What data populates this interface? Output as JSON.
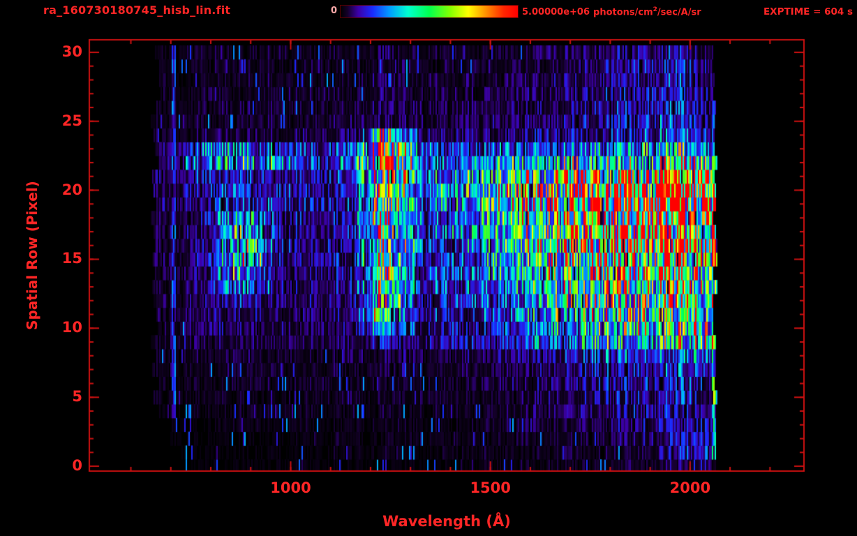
{
  "header": {
    "title": "ra_160730180745_hisb_lin.fit",
    "exptime": "EXPTIME = 604 s",
    "colorbar": {
      "min_label": "0",
      "max_value": "5.00000e+06",
      "units_pre": "photons/cm",
      "units_sup": "2",
      "units_post": "/sec/A/sr"
    }
  },
  "colors": {
    "text_red": "#ff2626",
    "frame_red": "#cc1111",
    "background": "#000000",
    "min_label_pale": "#ffaaaa"
  },
  "chart_data": {
    "type": "heatmap",
    "title": "ra_160730180745_hisb_lin.fit",
    "xlabel": "Wavelength (Å)",
    "ylabel": "Spatial Row (Pixel)",
    "x_axis_range": [
      496,
      2285
    ],
    "y_axis_range": [
      -0.4,
      30.9
    ],
    "x_major_ticks": [
      1000,
      1500,
      2000
    ],
    "x_minor_step": 100,
    "y_major_ticks": [
      0,
      5,
      10,
      15,
      20,
      25,
      30
    ],
    "y_minor_step": 1,
    "colorbar": {
      "min": 0,
      "max": 5000000,
      "units": "photons/cm^2/sec/A/sr"
    },
    "exptime_seconds": 604,
    "grid_on": false,
    "data_wavelength_extent": [
      650,
      2070
    ],
    "wavelength_bin_centers": [
      700,
      790,
      880,
      970,
      1060,
      1150,
      1240,
      1330,
      1420,
      1510,
      1600,
      1690,
      1780,
      1870,
      1960,
      2050
    ],
    "rows_order": "bottom_to_top",
    "intensity_pct_rows_0_to_30": [
      [
        0,
        1,
        1,
        1,
        1,
        1,
        1,
        1,
        1,
        2,
        2,
        2,
        3,
        4,
        5,
        8
      ],
      [
        1,
        1,
        1,
        1,
        1,
        2,
        2,
        2,
        2,
        2,
        2,
        3,
        3,
        5,
        7,
        15
      ],
      [
        1,
        1,
        1,
        1,
        2,
        2,
        2,
        2,
        2,
        2,
        3,
        3,
        4,
        6,
        8,
        12
      ],
      [
        1,
        1,
        2,
        2,
        2,
        2,
        2,
        2,
        2,
        3,
        3,
        4,
        5,
        7,
        9,
        10
      ],
      [
        1,
        2,
        2,
        2,
        2,
        2,
        3,
        2,
        3,
        3,
        4,
        5,
        6,
        8,
        10,
        8
      ],
      [
        2,
        2,
        2,
        2,
        2,
        3,
        3,
        3,
        3,
        3,
        4,
        5,
        7,
        9,
        11,
        9
      ],
      [
        2,
        2,
        3,
        2,
        3,
        3,
        3,
        3,
        3,
        4,
        5,
        6,
        8,
        10,
        12,
        10
      ],
      [
        2,
        3,
        3,
        3,
        3,
        3,
        4,
        3,
        4,
        4,
        5,
        7,
        9,
        11,
        13,
        12
      ],
      [
        2,
        3,
        3,
        3,
        3,
        4,
        5,
        4,
        5,
        6,
        8,
        10,
        12,
        15,
        18,
        20
      ],
      [
        3,
        4,
        5,
        4,
        4,
        5,
        10,
        7,
        9,
        11,
        15,
        20,
        25,
        30,
        34,
        40
      ],
      [
        3,
        5,
        6,
        5,
        5,
        6,
        20,
        8,
        10,
        13,
        18,
        24,
        30,
        36,
        40,
        45
      ],
      [
        3,
        5,
        8,
        5,
        5,
        7,
        35,
        9,
        11,
        15,
        22,
        30,
        36,
        42,
        46,
        44
      ],
      [
        3,
        6,
        10,
        6,
        6,
        7,
        38,
        10,
        12,
        17,
        25,
        34,
        40,
        46,
        50,
        48
      ],
      [
        3,
        7,
        25,
        7,
        6,
        8,
        40,
        11,
        14,
        20,
        30,
        40,
        46,
        52,
        56,
        54
      ],
      [
        3,
        7,
        35,
        7,
        7,
        8,
        42,
        12,
        16,
        24,
        34,
        44,
        50,
        57,
        61,
        58
      ],
      [
        4,
        8,
        40,
        8,
        7,
        9,
        45,
        12,
        17,
        26,
        36,
        46,
        53,
        60,
        64,
        60
      ],
      [
        4,
        8,
        38,
        8,
        8,
        9,
        45,
        13,
        18,
        28,
        38,
        48,
        55,
        62,
        66,
        62
      ],
      [
        4,
        8,
        35,
        8,
        8,
        10,
        48,
        14,
        20,
        30,
        40,
        50,
        58,
        65,
        70,
        65
      ],
      [
        4,
        9,
        30,
        9,
        9,
        10,
        50,
        15,
        22,
        32,
        42,
        52,
        62,
        70,
        75,
        70
      ],
      [
        5,
        10,
        13,
        10,
        9,
        11,
        55,
        17,
        26,
        38,
        48,
        58,
        70,
        82,
        92,
        98
      ],
      [
        5,
        10,
        14,
        10,
        10,
        12,
        55,
        18,
        28,
        40,
        50,
        60,
        72,
        85,
        95,
        100
      ],
      [
        5,
        12,
        15,
        10,
        10,
        12,
        60,
        18,
        25,
        35,
        45,
        55,
        65,
        75,
        85,
        80
      ],
      [
        6,
        22,
        30,
        18,
        15,
        18,
        68,
        20,
        20,
        22,
        25,
        28,
        32,
        38,
        45,
        40
      ],
      [
        5,
        18,
        20,
        12,
        10,
        12,
        62,
        15,
        14,
        15,
        16,
        18,
        20,
        25,
        30,
        28
      ],
      [
        3,
        4,
        4,
        4,
        4,
        5,
        45,
        6,
        6,
        6,
        7,
        8,
        10,
        13,
        15,
        12
      ],
      [
        3,
        3,
        3,
        3,
        3,
        4,
        6,
        4,
        5,
        5,
        6,
        7,
        9,
        12,
        14,
        10
      ],
      [
        2,
        3,
        3,
        3,
        3,
        4,
        5,
        4,
        4,
        5,
        5,
        7,
        8,
        11,
        13,
        9
      ],
      [
        2,
        3,
        2,
        3,
        3,
        3,
        4,
        4,
        4,
        4,
        5,
        6,
        8,
        10,
        12,
        8
      ],
      [
        2,
        2,
        3,
        3,
        2,
        3,
        4,
        3,
        4,
        4,
        5,
        6,
        7,
        10,
        12,
        8
      ],
      [
        2,
        3,
        3,
        2,
        3,
        3,
        3,
        3,
        3,
        4,
        4,
        5,
        7,
        9,
        11,
        7
      ],
      [
        2,
        3,
        2,
        3,
        2,
        3,
        4,
        3,
        3,
        3,
        4,
        5,
        6,
        8,
        10,
        6
      ]
    ],
    "features": {
      "lyman_alpha_line": {
        "wavelength": 1216,
        "core_halfwidth_A": 8,
        "wing_halfwidth_A": 14,
        "rows": [
          11,
          24
        ],
        "core_intensity_pct": 62,
        "wing_intensity_pct": 30,
        "faint_rows": [
          9,
          10
        ],
        "faint_intensity_pct": 18
      },
      "left_edge_line": {
        "wavelength": 705,
        "halfwidth_A": 7,
        "rows": [
          4,
          30
        ],
        "intensity_pct": 9
      },
      "crescent_arc": {
        "wavelength": 870,
        "rows": [
          13,
          18
        ],
        "intensity_pct": 40
      },
      "right_edge_column": {
        "wavelength_range": [
          2052,
          2070
        ],
        "band_intensities": {
          "rows_1_8": 26,
          "rows_9_18": 50,
          "rows_19_21": 88,
          "rows_22_23": 40
        }
      }
    },
    "colormap_stops": [
      [
        0.0,
        "#000000"
      ],
      [
        0.04,
        "#14002a"
      ],
      [
        0.1,
        "#3c00a8"
      ],
      [
        0.18,
        "#1a2aff"
      ],
      [
        0.28,
        "#00a0ff"
      ],
      [
        0.38,
        "#00ffd0"
      ],
      [
        0.5,
        "#00ff50"
      ],
      [
        0.62,
        "#86ff00"
      ],
      [
        0.72,
        "#ffff00"
      ],
      [
        0.82,
        "#ff9000"
      ],
      [
        0.92,
        "#ff2600"
      ],
      [
        1.0,
        "#ff0000"
      ]
    ]
  }
}
